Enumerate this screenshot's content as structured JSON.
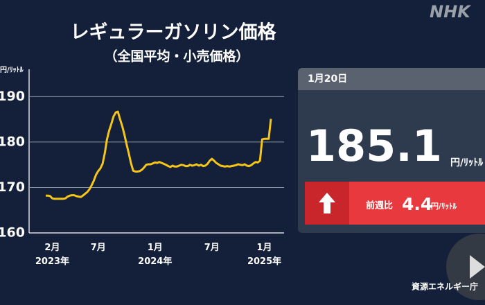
{
  "logo": "NHK",
  "chart_data": {
    "type": "line",
    "title": "レギュラーガソリン価格",
    "subtitle": "（全国平均・小売価格）",
    "y_label": "円/ﾘｯﾄﾙ",
    "categories": [
      null,
      null,
      null,
      "2月\n2023年",
      null,
      null,
      null,
      null,
      null,
      null,
      null,
      null,
      null,
      null,
      null,
      null,
      null,
      null,
      null,
      null,
      null,
      null,
      null,
      null,
      "7月",
      null,
      null,
      null,
      null,
      null,
      null,
      null,
      null,
      null,
      null,
      null,
      null,
      null,
      null,
      null,
      null,
      null,
      null,
      null,
      null,
      null,
      null,
      null,
      null,
      null,
      "1月\n2024年",
      null,
      null,
      null,
      null,
      null,
      null,
      null,
      null,
      null,
      null,
      null,
      null,
      null,
      null,
      null,
      null,
      null,
      null,
      null,
      null,
      null,
      null,
      null,
      null,
      null,
      "7月",
      null,
      null,
      null,
      null,
      null,
      null,
      null,
      null,
      null,
      null,
      null,
      null,
      null,
      null,
      null,
      null,
      null,
      null,
      null,
      null,
      null,
      null,
      null,
      "1月\n2025年",
      null,
      null,
      null
    ],
    "values": [
      168.2,
      168.2,
      168.1,
      167.6,
      167.5,
      167.5,
      167.5,
      167.5,
      167.5,
      167.6,
      168.0,
      168.2,
      168.3,
      168.3,
      168.1,
      168.0,
      167.9,
      168.2,
      168.6,
      169.0,
      169.6,
      170.5,
      171.5,
      172.8,
      173.6,
      174.2,
      175.2,
      177.5,
      180.5,
      182.5,
      184.0,
      185.6,
      186.5,
      186.7,
      185.0,
      183.5,
      181.6,
      179.5,
      177.5,
      175.3,
      173.7,
      173.5,
      173.5,
      173.6,
      173.9,
      174.4,
      175.0,
      175.1,
      175.1,
      175.3,
      175.5,
      175.4,
      175.6,
      175.4,
      175.2,
      175.0,
      174.7,
      174.5,
      174.8,
      174.6,
      174.6,
      174.8,
      175.0,
      174.9,
      174.7,
      174.7,
      175.0,
      174.8,
      174.9,
      175.1,
      174.8,
      175.0,
      174.7,
      174.8,
      175.2,
      175.9,
      176.3,
      175.9,
      175.4,
      175.1,
      174.8,
      174.7,
      174.6,
      174.7,
      174.6,
      174.7,
      174.8,
      174.9,
      175.1,
      175.0,
      174.9,
      175.1,
      174.8,
      174.7,
      174.9,
      175.3,
      175.6,
      175.5,
      175.9,
      180.6,
      180.7,
      180.7,
      180.7,
      185.1
    ],
    "color": "#f6c519",
    "ylim": [
      160,
      196
    ],
    "yticks": [
      160,
      170,
      180,
      190
    ],
    "grid": true
  },
  "panel": {
    "date": "1月20日",
    "value": 185.1,
    "unit": "円/ﾘｯﾄﾙ",
    "change_label": "前週比",
    "change": 4.4,
    "change_unit": "円/ﾘｯﾄﾙ"
  },
  "source": "資源エネルギー庁"
}
